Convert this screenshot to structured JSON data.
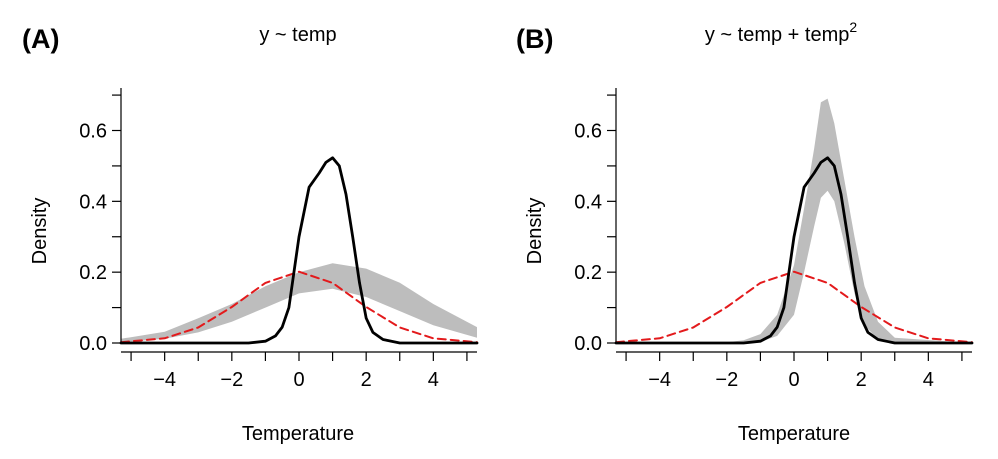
{
  "chart_data": [
    {
      "panel_label": "(A)",
      "title": "y ~ temp",
      "type": "line",
      "xlabel": "Temperature",
      "ylabel": "Density",
      "xlim": [
        -5.3,
        5.3
      ],
      "ylim": [
        0,
        0.72
      ],
      "x_ticks": [
        -4,
        -2,
        0,
        2,
        4
      ],
      "x_tick_labels": [
        "−4",
        "−2",
        "0",
        "2",
        "4"
      ],
      "y_ticks": [
        0.0,
        0.2,
        0.4,
        0.6
      ],
      "y_tick_labels": [
        "0.0",
        "0.2",
        "0.4",
        "0.6"
      ],
      "grid": false,
      "band": {
        "color": "#bdbdbd",
        "x": [
          -5.3,
          -4,
          -3,
          -2,
          -1,
          0,
          1,
          2,
          3,
          4,
          5.3
        ],
        "lower": [
          0.002,
          0.012,
          0.03,
          0.06,
          0.1,
          0.14,
          0.153,
          0.13,
          0.09,
          0.05,
          0.015
        ],
        "upper": [
          0.012,
          0.032,
          0.07,
          0.11,
          0.16,
          0.2,
          0.225,
          0.21,
          0.17,
          0.11,
          0.045
        ]
      },
      "series": [
        {
          "style": "solid",
          "color": "#000000",
          "x": [
            -5.3,
            -1.5,
            -1.0,
            -0.7,
            -0.5,
            -0.3,
            0.0,
            0.3,
            0.6,
            0.8,
            1.0,
            1.2,
            1.4,
            1.6,
            1.8,
            2.0,
            2.2,
            2.5,
            3.0,
            5.3
          ],
          "y": [
            0,
            0,
            0.005,
            0.02,
            0.045,
            0.1,
            0.3,
            0.44,
            0.48,
            0.51,
            0.523,
            0.5,
            0.42,
            0.3,
            0.17,
            0.07,
            0.03,
            0.01,
            0,
            0
          ]
        },
        {
          "style": "dashed",
          "color": "#e31a1c",
          "x": [
            -5.3,
            -4,
            -3,
            -2,
            -1,
            0,
            1,
            2,
            3,
            4,
            5.3
          ],
          "y": [
            0.0023,
            0.0134,
            0.0437,
            0.1016,
            0.1697,
            0.2012,
            0.1697,
            0.1016,
            0.0437,
            0.0134,
            0.0023
          ]
        }
      ]
    },
    {
      "panel_label": "(B)",
      "title": "y ~ temp + temp",
      "title_superscript": "2",
      "type": "line",
      "xlabel": "Temperature",
      "ylabel": "Density",
      "xlim": [
        -5.3,
        5.3
      ],
      "ylim": [
        0,
        0.72
      ],
      "x_ticks": [
        -4,
        -2,
        0,
        2,
        4
      ],
      "x_tick_labels": [
        "−4",
        "−2",
        "0",
        "2",
        "4"
      ],
      "y_ticks": [
        0.0,
        0.2,
        0.4,
        0.6
      ],
      "y_tick_labels": [
        "0.0",
        "0.2",
        "0.4",
        "0.6"
      ],
      "grid": false,
      "band": {
        "color": "#bdbdbd",
        "x": [
          -5.3,
          -2.0,
          -1.5,
          -1.0,
          -0.5,
          0.0,
          0.3,
          0.6,
          0.8,
          1.0,
          1.2,
          1.5,
          1.8,
          2.1,
          2.5,
          3.0,
          5.3
        ],
        "lower": [
          0,
          0,
          0,
          0.003,
          0.02,
          0.08,
          0.2,
          0.33,
          0.41,
          0.43,
          0.4,
          0.28,
          0.14,
          0.05,
          0.01,
          0,
          0
        ],
        "upper": [
          0,
          0.002,
          0.008,
          0.025,
          0.08,
          0.22,
          0.38,
          0.55,
          0.68,
          0.69,
          0.62,
          0.46,
          0.3,
          0.16,
          0.06,
          0.015,
          0
        ]
      },
      "series": [
        {
          "style": "solid",
          "color": "#000000",
          "x": [
            -5.3,
            -1.5,
            -1.0,
            -0.7,
            -0.5,
            -0.3,
            0.0,
            0.3,
            0.6,
            0.8,
            1.0,
            1.2,
            1.4,
            1.6,
            1.8,
            2.0,
            2.2,
            2.5,
            3.0,
            5.3
          ],
          "y": [
            0,
            0,
            0.005,
            0.02,
            0.045,
            0.1,
            0.3,
            0.44,
            0.48,
            0.51,
            0.523,
            0.5,
            0.42,
            0.3,
            0.17,
            0.07,
            0.03,
            0.01,
            0,
            0
          ]
        },
        {
          "style": "dashed",
          "color": "#e31a1c",
          "x": [
            -5.3,
            -4,
            -3,
            -2,
            -1,
            0,
            1,
            2,
            3,
            4,
            5.3
          ],
          "y": [
            0.0023,
            0.0134,
            0.0437,
            0.1016,
            0.1697,
            0.2012,
            0.1697,
            0.1016,
            0.0437,
            0.0134,
            0.0023
          ]
        }
      ]
    }
  ]
}
